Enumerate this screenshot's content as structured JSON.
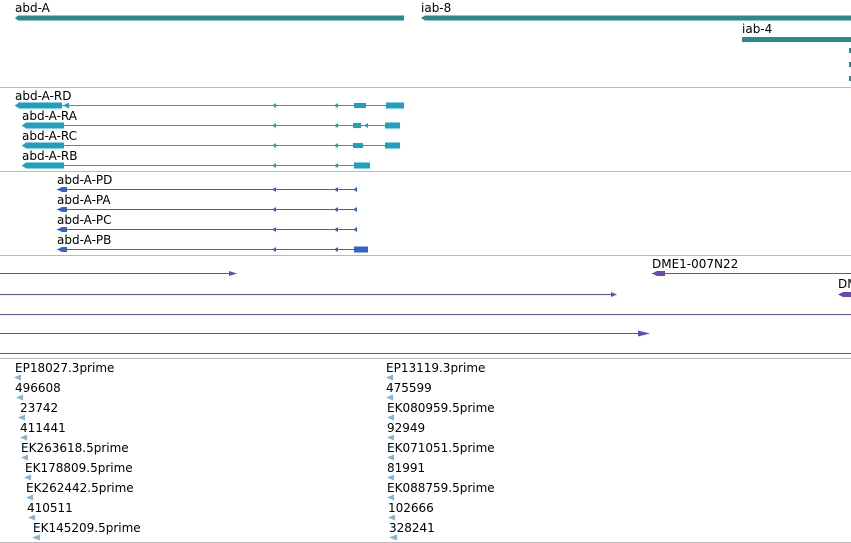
{
  "colors": {
    "gene": "#2b8a8a",
    "transcript": "#1fa0c0",
    "protein": "#3464c8",
    "clone": "#6a49b0",
    "est": "#84b4d8",
    "divider": "#b9b9b9"
  },
  "genes": [
    {
      "label": "abd-A",
      "name": "gene-abd-a"
    },
    {
      "label": "iab-8",
      "name": "gene-iab-8"
    },
    {
      "label": "iab-4",
      "name": "gene-iab-4"
    }
  ],
  "transcripts": [
    {
      "label": "abd-A-RD",
      "name": "transcript-abd-a-rd"
    },
    {
      "label": "abd-A-RA",
      "name": "transcript-abd-a-ra"
    },
    {
      "label": "abd-A-RC",
      "name": "transcript-abd-a-rc"
    },
    {
      "label": "abd-A-RB",
      "name": "transcript-abd-a-rb"
    }
  ],
  "proteins": [
    {
      "label": "abd-A-PD",
      "name": "protein-abd-a-pd"
    },
    {
      "label": "abd-A-PA",
      "name": "protein-abd-a-pa"
    },
    {
      "label": "abd-A-PC",
      "name": "protein-abd-a-pc"
    },
    {
      "label": "abd-A-PB",
      "name": "protein-abd-a-pb"
    }
  ],
  "clones": [
    {
      "label": "DME1-007N22",
      "name": "clone-dme1-007n22"
    },
    {
      "label": "DM",
      "name": "clone-dm-truncated"
    }
  ],
  "ests_left": [
    {
      "label": "EP18027.3prime"
    },
    {
      "label": "496608"
    },
    {
      "label": "23742"
    },
    {
      "label": "411441"
    },
    {
      "label": "EK263618.5prime"
    },
    {
      "label": "EK178809.5prime"
    },
    {
      "label": "EK262442.5prime"
    },
    {
      "label": "410511"
    },
    {
      "label": "EK145209.5prime"
    }
  ],
  "ests_right": [
    {
      "label": "EP13119.3prime"
    },
    {
      "label": "475599"
    },
    {
      "label": "EK080959.5prime"
    },
    {
      "label": "92949"
    },
    {
      "label": "EK071051.5prime"
    },
    {
      "label": "81991"
    },
    {
      "label": "EK088759.5prime"
    },
    {
      "label": "102666"
    },
    {
      "label": "328241"
    }
  ]
}
